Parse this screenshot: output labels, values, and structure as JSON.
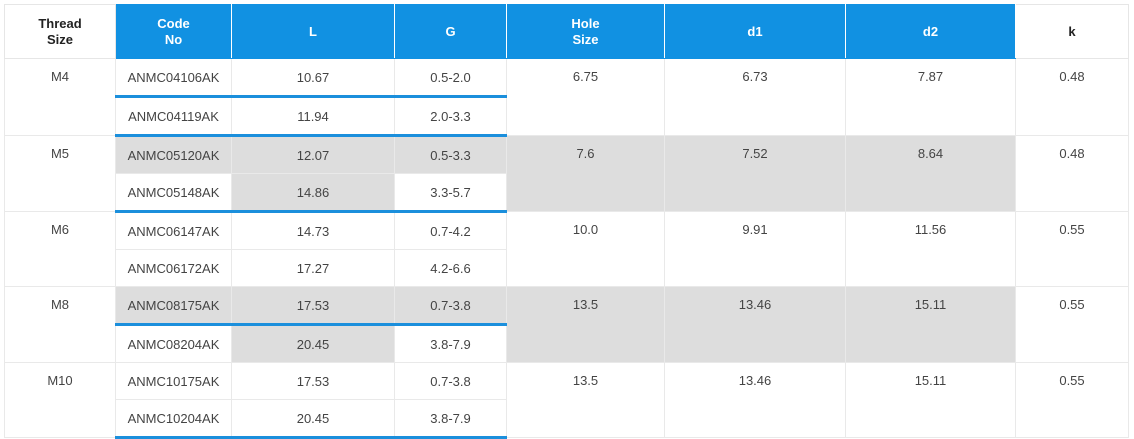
{
  "headers": {
    "thread_size": "Thread\nSize",
    "code_no": "Code\nNo",
    "L": "L",
    "G": "G",
    "hole_size": "Hole\nSize",
    "d1": "d1",
    "d2": "d2",
    "k": "k"
  },
  "groups": [
    {
      "thread": "M4",
      "hole": "6.75",
      "d1": "6.73",
      "d2": "7.87",
      "k": "0.48",
      "rows": [
        {
          "code": "ANMC04106AK",
          "L": "10.67",
          "G": "0.5-2.0"
        },
        {
          "code": "ANMC04119AK",
          "L": "11.94",
          "G": "2.0-3.3"
        }
      ]
    },
    {
      "thread": "M5",
      "hole": "7.6",
      "d1": "7.52",
      "d2": "8.64",
      "k": "0.48",
      "rows": [
        {
          "code": "ANMC05120AK",
          "L": "12.07",
          "G": "0.5-3.3"
        },
        {
          "code": "ANMC05148AK",
          "L": "14.86",
          "G": "3.3-5.7"
        }
      ]
    },
    {
      "thread": "M6",
      "hole": "10.0",
      "d1": "9.91",
      "d2": "11.56",
      "k": "0.55",
      "rows": [
        {
          "code": "ANMC06147AK",
          "L": "14.73",
          "G": "0.7-4.2"
        },
        {
          "code": "ANMC06172AK",
          "L": "17.27",
          "G": "4.2-6.6"
        }
      ]
    },
    {
      "thread": "M8",
      "hole": "13.5",
      "d1": "13.46",
      "d2": "15.11",
      "k": "0.55",
      "rows": [
        {
          "code": "ANMC08175AK",
          "L": "17.53",
          "G": "0.7-3.8"
        },
        {
          "code": "ANMC08204AK",
          "L": "20.45",
          "G": "3.8-7.9"
        }
      ]
    },
    {
      "thread": "M10",
      "hole": "13.5",
      "d1": "13.46",
      "d2": "15.11",
      "k": "0.55",
      "rows": [
        {
          "code": "ANMC10175AK",
          "L": "17.53",
          "G": "0.7-3.8"
        },
        {
          "code": "ANMC10204AK",
          "L": "20.45",
          "G": "3.8-7.9"
        }
      ]
    }
  ],
  "colors": {
    "header_blue": "#1191e2",
    "accent_blue": "#1b8fdc",
    "stripe_gray": "#dddddd"
  }
}
